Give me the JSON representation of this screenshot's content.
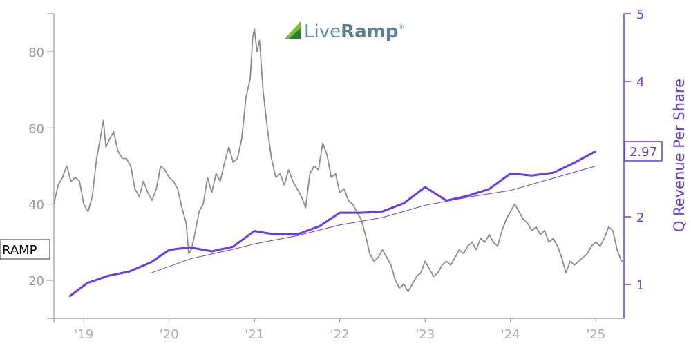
{
  "logo": {
    "text_a": "Live",
    "text_b": "Ramp",
    "mark": "®"
  },
  "chart_data": {
    "type": "line",
    "ticker": "RAMP",
    "colors": {
      "price": "#8c8c8c",
      "revenue": "#6a3ae6",
      "axis_left": "#999999",
      "axis_right": "#6a3ae6"
    },
    "x_axis": {
      "range": [
        2018.65,
        2025.33
      ],
      "ticks": [
        {
          "value": 2019,
          "label": "'19"
        },
        {
          "value": 2020,
          "label": "'20"
        },
        {
          "value": 2021,
          "label": "'21"
        },
        {
          "value": 2022,
          "label": "'22"
        },
        {
          "value": 2023,
          "label": "'23"
        },
        {
          "value": 2024,
          "label": "'24"
        },
        {
          "value": 2025,
          "label": "'25"
        }
      ]
    },
    "left_axis": {
      "range": [
        10,
        90
      ],
      "ticks": [
        20,
        40,
        60,
        80
      ]
    },
    "right_axis": {
      "label": "Q Revenue Per Share",
      "range": [
        0.5,
        5
      ],
      "ticks": [
        1,
        2,
        3,
        4,
        5
      ],
      "last_value_label": "2.97"
    },
    "price_series": [
      [
        2018.65,
        40
      ],
      [
        2018.7,
        45
      ],
      [
        2018.75,
        47
      ],
      [
        2018.8,
        50
      ],
      [
        2018.85,
        46
      ],
      [
        2018.9,
        47
      ],
      [
        2018.95,
        46
      ],
      [
        2019.0,
        40
      ],
      [
        2019.05,
        38
      ],
      [
        2019.1,
        42
      ],
      [
        2019.15,
        52
      ],
      [
        2019.2,
        58
      ],
      [
        2019.23,
        62
      ],
      [
        2019.26,
        55
      ],
      [
        2019.3,
        57
      ],
      [
        2019.35,
        59
      ],
      [
        2019.4,
        54
      ],
      [
        2019.45,
        52
      ],
      [
        2019.5,
        52
      ],
      [
        2019.55,
        50
      ],
      [
        2019.6,
        44
      ],
      [
        2019.65,
        42
      ],
      [
        2019.7,
        46
      ],
      [
        2019.75,
        43
      ],
      [
        2019.8,
        41
      ],
      [
        2019.85,
        44
      ],
      [
        2019.9,
        50
      ],
      [
        2019.95,
        49
      ],
      [
        2020.0,
        47
      ],
      [
        2020.05,
        46
      ],
      [
        2020.1,
        44
      ],
      [
        2020.15,
        39
      ],
      [
        2020.2,
        35
      ],
      [
        2020.23,
        27
      ],
      [
        2020.26,
        28
      ],
      [
        2020.3,
        32
      ],
      [
        2020.35,
        38
      ],
      [
        2020.4,
        40
      ],
      [
        2020.45,
        47
      ],
      [
        2020.5,
        43
      ],
      [
        2020.55,
        48
      ],
      [
        2020.6,
        46
      ],
      [
        2020.65,
        51
      ],
      [
        2020.7,
        55
      ],
      [
        2020.75,
        51
      ],
      [
        2020.8,
        52
      ],
      [
        2020.85,
        57
      ],
      [
        2020.9,
        68
      ],
      [
        2020.95,
        73
      ],
      [
        2020.98,
        84
      ],
      [
        2021.0,
        86
      ],
      [
        2021.03,
        80
      ],
      [
        2021.06,
        83
      ],
      [
        2021.1,
        70
      ],
      [
        2021.15,
        60
      ],
      [
        2021.2,
        52
      ],
      [
        2021.25,
        47
      ],
      [
        2021.3,
        48
      ],
      [
        2021.35,
        45
      ],
      [
        2021.4,
        49
      ],
      [
        2021.45,
        46
      ],
      [
        2021.5,
        44
      ],
      [
        2021.55,
        42
      ],
      [
        2021.6,
        39
      ],
      [
        2021.65,
        48
      ],
      [
        2021.7,
        50
      ],
      [
        2021.75,
        49
      ],
      [
        2021.8,
        56
      ],
      [
        2021.85,
        53
      ],
      [
        2021.9,
        47
      ],
      [
        2021.95,
        48
      ],
      [
        2022.0,
        43
      ],
      [
        2022.05,
        44
      ],
      [
        2022.1,
        41
      ],
      [
        2022.15,
        40
      ],
      [
        2022.2,
        38
      ],
      [
        2022.25,
        36
      ],
      [
        2022.3,
        32
      ],
      [
        2022.35,
        27
      ],
      [
        2022.4,
        25
      ],
      [
        2022.45,
        26
      ],
      [
        2022.5,
        28
      ],
      [
        2022.55,
        26
      ],
      [
        2022.6,
        24
      ],
      [
        2022.65,
        20
      ],
      [
        2022.7,
        18
      ],
      [
        2022.75,
        19
      ],
      [
        2022.8,
        17
      ],
      [
        2022.85,
        19
      ],
      [
        2022.9,
        21
      ],
      [
        2022.95,
        22
      ],
      [
        2023.0,
        25
      ],
      [
        2023.05,
        23
      ],
      [
        2023.1,
        21
      ],
      [
        2023.15,
        22
      ],
      [
        2023.2,
        24
      ],
      [
        2023.25,
        25
      ],
      [
        2023.3,
        24
      ],
      [
        2023.35,
        26
      ],
      [
        2023.4,
        28
      ],
      [
        2023.45,
        27
      ],
      [
        2023.5,
        29
      ],
      [
        2023.55,
        30
      ],
      [
        2023.6,
        28
      ],
      [
        2023.65,
        31
      ],
      [
        2023.7,
        30
      ],
      [
        2023.75,
        32
      ],
      [
        2023.8,
        30
      ],
      [
        2023.85,
        29
      ],
      [
        2023.9,
        33
      ],
      [
        2023.95,
        36
      ],
      [
        2024.0,
        38
      ],
      [
        2024.05,
        40
      ],
      [
        2024.1,
        38
      ],
      [
        2024.15,
        36
      ],
      [
        2024.2,
        35
      ],
      [
        2024.25,
        33
      ],
      [
        2024.3,
        34
      ],
      [
        2024.35,
        32
      ],
      [
        2024.4,
        33
      ],
      [
        2024.45,
        30
      ],
      [
        2024.5,
        31
      ],
      [
        2024.55,
        29
      ],
      [
        2024.6,
        26
      ],
      [
        2024.65,
        22
      ],
      [
        2024.7,
        25
      ],
      [
        2024.75,
        24
      ],
      [
        2024.8,
        25
      ],
      [
        2024.85,
        26
      ],
      [
        2024.9,
        27
      ],
      [
        2024.95,
        29
      ],
      [
        2025.0,
        30
      ],
      [
        2025.05,
        29
      ],
      [
        2025.1,
        31
      ],
      [
        2025.15,
        34
      ],
      [
        2025.2,
        33
      ],
      [
        2025.25,
        28
      ],
      [
        2025.3,
        25
      ],
      [
        2025.33,
        25
      ]
    ],
    "revenue_series": [
      [
        2018.83,
        0.82
      ],
      [
        2019.04,
        1.02
      ],
      [
        2019.29,
        1.13
      ],
      [
        2019.53,
        1.19
      ],
      [
        2019.79,
        1.33
      ],
      [
        2020.0,
        1.51
      ],
      [
        2020.24,
        1.55
      ],
      [
        2020.5,
        1.49
      ],
      [
        2020.75,
        1.56
      ],
      [
        2021.0,
        1.79
      ],
      [
        2021.24,
        1.74
      ],
      [
        2021.5,
        1.74
      ],
      [
        2021.76,
        1.86
      ],
      [
        2022.0,
        2.06
      ],
      [
        2022.25,
        2.06
      ],
      [
        2022.5,
        2.08
      ],
      [
        2022.75,
        2.2
      ],
      [
        2023.0,
        2.44
      ],
      [
        2023.25,
        2.24
      ],
      [
        2023.5,
        2.31
      ],
      [
        2023.75,
        2.41
      ],
      [
        2024.0,
        2.64
      ],
      [
        2024.25,
        2.61
      ],
      [
        2024.5,
        2.65
      ],
      [
        2024.75,
        2.8
      ],
      [
        2025.0,
        2.97
      ]
    ],
    "revenue_trend": [
      [
        2019.79,
        1.17
      ],
      [
        2020.25,
        1.38
      ],
      [
        2020.75,
        1.52
      ],
      [
        2021.0,
        1.6
      ],
      [
        2021.5,
        1.72
      ],
      [
        2022.0,
        1.88
      ],
      [
        2022.5,
        1.99
      ],
      [
        2023.0,
        2.17
      ],
      [
        2023.5,
        2.29
      ],
      [
        2024.0,
        2.39
      ],
      [
        2024.5,
        2.57
      ],
      [
        2025.0,
        2.75
      ]
    ]
  }
}
